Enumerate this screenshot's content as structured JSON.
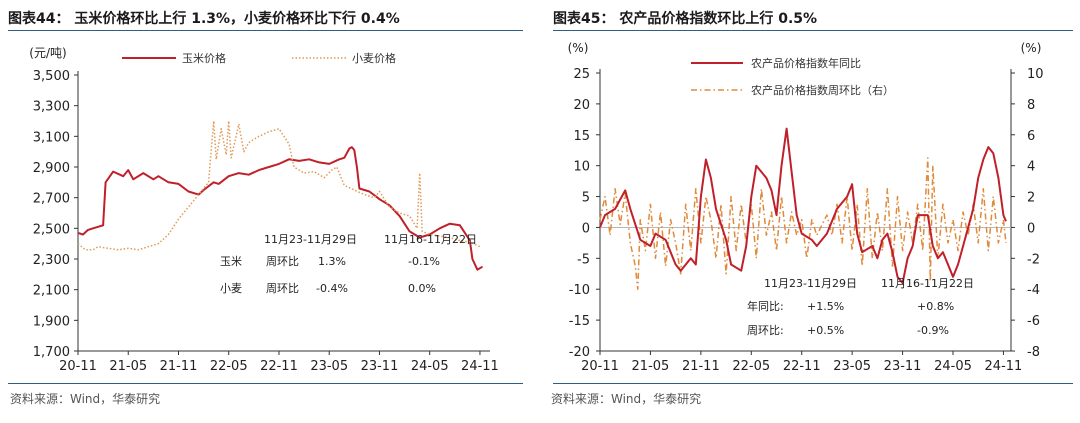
{
  "left": {
    "title": "图表44：  玉米价格环比上行 1.3%，小麦价格环比下行 0.4%",
    "source": "资料来源：Wind，华泰研究",
    "chart_data": {
      "type": "line",
      "ylabel": "(元/吨)",
      "ylim": [
        1700,
        3500
      ],
      "yticks": [
        "3,500",
        "3,300",
        "3,100",
        "2,900",
        "2,700",
        "2,500",
        "2,300",
        "2,100",
        "1,900",
        "1,700"
      ],
      "xlabels": [
        "20-11",
        "21-05",
        "21-11",
        "22-05",
        "22-11",
        "23-05",
        "23-11",
        "24-05",
        "24-11"
      ],
      "series": [
        {
          "name": "玉米价格",
          "color": "#c0202a",
          "style": "solid",
          "points": [
            [
              0,
              2470
            ],
            [
              0.1,
              2460
            ],
            [
              0.2,
              2490
            ],
            [
              0.3,
              2500
            ],
            [
              0.5,
              2520
            ],
            [
              0.55,
              2800
            ],
            [
              0.7,
              2870
            ],
            [
              0.9,
              2840
            ],
            [
              1.0,
              2880
            ],
            [
              1.1,
              2820
            ],
            [
              1.3,
              2860
            ],
            [
              1.5,
              2820
            ],
            [
              1.6,
              2840
            ],
            [
              1.8,
              2800
            ],
            [
              2.0,
              2790
            ],
            [
              2.2,
              2740
            ],
            [
              2.4,
              2720
            ],
            [
              2.5,
              2750
            ],
            [
              2.7,
              2800
            ],
            [
              2.8,
              2790
            ],
            [
              3.0,
              2840
            ],
            [
              3.2,
              2860
            ],
            [
              3.4,
              2850
            ],
            [
              3.6,
              2880
            ],
            [
              3.8,
              2900
            ],
            [
              4.0,
              2920
            ],
            [
              4.2,
              2950
            ],
            [
              4.4,
              2940
            ],
            [
              4.6,
              2950
            ],
            [
              4.8,
              2930
            ],
            [
              5.0,
              2920
            ],
            [
              5.2,
              2950
            ],
            [
              5.3,
              2960
            ],
            [
              5.4,
              3020
            ],
            [
              5.45,
              3030
            ],
            [
              5.5,
              3010
            ],
            [
              5.55,
              2900
            ],
            [
              5.6,
              2760
            ],
            [
              5.8,
              2740
            ],
            [
              6.0,
              2690
            ],
            [
              6.2,
              2650
            ],
            [
              6.4,
              2580
            ],
            [
              6.6,
              2480
            ],
            [
              6.8,
              2440
            ],
            [
              7.0,
              2460
            ],
            [
              7.2,
              2500
            ],
            [
              7.4,
              2530
            ],
            [
              7.6,
              2520
            ],
            [
              7.8,
              2420
            ],
            [
              7.85,
              2300
            ],
            [
              7.95,
              2230
            ],
            [
              8.05,
              2250
            ]
          ]
        },
        {
          "name": "小麦价格",
          "color": "#e09a55",
          "style": "dotted",
          "points": [
            [
              0,
              2400
            ],
            [
              0.15,
              2360
            ],
            [
              0.3,
              2360
            ],
            [
              0.4,
              2380
            ],
            [
              0.6,
              2370
            ],
            [
              0.8,
              2360
            ],
            [
              1.0,
              2370
            ],
            [
              1.2,
              2360
            ],
            [
              1.4,
              2380
            ],
            [
              1.6,
              2400
            ],
            [
              1.8,
              2460
            ],
            [
              2.0,
              2560
            ],
            [
              2.2,
              2640
            ],
            [
              2.4,
              2720
            ],
            [
              2.6,
              2800
            ],
            [
              2.65,
              3000
            ],
            [
              2.7,
              3200
            ],
            [
              2.75,
              2950
            ],
            [
              2.85,
              3150
            ],
            [
              2.95,
              2980
            ],
            [
              3.0,
              3200
            ],
            [
              3.05,
              2960
            ],
            [
              3.2,
              3180
            ],
            [
              3.3,
              3000
            ],
            [
              3.4,
              3060
            ],
            [
              3.6,
              3100
            ],
            [
              3.8,
              3130
            ],
            [
              4.0,
              3150
            ],
            [
              4.1,
              3100
            ],
            [
              4.2,
              3050
            ],
            [
              4.3,
              2900
            ],
            [
              4.5,
              2860
            ],
            [
              4.7,
              2870
            ],
            [
              4.9,
              2830
            ],
            [
              5.05,
              2880
            ],
            [
              5.15,
              2900
            ],
            [
              5.3,
              2780
            ],
            [
              5.5,
              2750
            ],
            [
              5.7,
              2720
            ],
            [
              5.9,
              2700
            ],
            [
              6.0,
              2740
            ],
            [
              6.2,
              2640
            ],
            [
              6.4,
              2600
            ],
            [
              6.6,
              2580
            ],
            [
              6.75,
              2500
            ],
            [
              6.8,
              2860
            ],
            [
              6.85,
              2480
            ],
            [
              7.0,
              2460
            ],
            [
              7.2,
              2450
            ],
            [
              7.4,
              2440
            ],
            [
              7.6,
              2420
            ],
            [
              7.8,
              2410
            ],
            [
              8.0,
              2380
            ]
          ]
        }
      ]
    },
    "table": {
      "header_a": "11月23-11月29日",
      "header_b": "11月16-11月22日",
      "rows": [
        {
          "name": "玉米",
          "metric": "周环比",
          "a": "1.3%",
          "b": "-0.1%"
        },
        {
          "name": "小麦",
          "metric": "周环比",
          "a": "-0.4%",
          "b": "0.0%"
        }
      ]
    }
  },
  "right": {
    "title": "图表45：  农产品价格指数环比上行 0.5%",
    "source": "资料来源：Wind，华泰研究",
    "chart_data": {
      "type": "line",
      "ylabel_left": "(%)",
      "ylabel_right": "(%)",
      "ylim_left": [
        -20,
        25
      ],
      "ylim_right": [
        -8,
        10
      ],
      "yticks_left": [
        "25",
        "20",
        "15",
        "10",
        "5",
        "0",
        "-5",
        "-10",
        "-15",
        "-20"
      ],
      "yticks_right": [
        "10",
        "8",
        "6",
        "4",
        "2",
        "0",
        "-2",
        "-4",
        "-6",
        "-8"
      ],
      "xlabels": [
        "20-11",
        "21-05",
        "21-11",
        "22-05",
        "22-11",
        "23-05",
        "23-11",
        "24-05",
        "24-11"
      ],
      "series": [
        {
          "name": "农产品价格指数年同比",
          "color": "#c0202a",
          "style": "solid",
          "axis": "left",
          "points": [
            [
              0,
              0
            ],
            [
              0.1,
              2
            ],
            [
              0.3,
              3
            ],
            [
              0.5,
              6
            ],
            [
              0.6,
              3
            ],
            [
              0.8,
              -2
            ],
            [
              1.0,
              -3
            ],
            [
              1.1,
              -1
            ],
            [
              1.3,
              -2
            ],
            [
              1.5,
              -6
            ],
            [
              1.6,
              -7
            ],
            [
              1.8,
              -5
            ],
            [
              1.9,
              -6
            ],
            [
              2.0,
              5
            ],
            [
              2.1,
              11
            ],
            [
              2.2,
              8
            ],
            [
              2.3,
              3
            ],
            [
              2.5,
              -2
            ],
            [
              2.6,
              -6
            ],
            [
              2.8,
              -7
            ],
            [
              2.9,
              -3
            ],
            [
              3.0,
              5
            ],
            [
              3.1,
              10
            ],
            [
              3.3,
              8
            ],
            [
              3.4,
              6
            ],
            [
              3.5,
              2
            ],
            [
              3.6,
              10
            ],
            [
              3.7,
              16
            ],
            [
              3.8,
              9
            ],
            [
              3.9,
              2
            ],
            [
              4.0,
              -1
            ],
            [
              4.2,
              -2
            ],
            [
              4.3,
              -3
            ],
            [
              4.5,
              -1
            ],
            [
              4.7,
              3
            ],
            [
              4.9,
              5
            ],
            [
              5.0,
              7
            ],
            [
              5.1,
              -1
            ],
            [
              5.2,
              -4
            ],
            [
              5.4,
              -3
            ],
            [
              5.5,
              -5
            ],
            [
              5.6,
              -2
            ],
            [
              5.7,
              -1
            ],
            [
              5.8,
              -4
            ],
            [
              5.9,
              -8
            ],
            [
              6.0,
              -9
            ],
            [
              6.1,
              -5
            ],
            [
              6.2,
              -3
            ],
            [
              6.3,
              2
            ],
            [
              6.5,
              2
            ],
            [
              6.6,
              -3
            ],
            [
              6.7,
              -5
            ],
            [
              6.8,
              -4
            ],
            [
              6.9,
              -6
            ],
            [
              7.0,
              -8
            ],
            [
              7.1,
              -6
            ],
            [
              7.2,
              -3
            ],
            [
              7.4,
              3
            ],
            [
              7.5,
              8
            ],
            [
              7.6,
              11
            ],
            [
              7.7,
              13
            ],
            [
              7.8,
              12
            ],
            [
              7.9,
              8
            ],
            [
              8.0,
              2
            ],
            [
              8.05,
              1
            ]
          ]
        },
        {
          "name": "农产品价格指数周环比（右）",
          "color": "#e08a3a",
          "style": "dashdot",
          "axis": "right",
          "points": [
            [
              0,
              0.5
            ],
            [
              0.1,
              2.0
            ],
            [
              0.2,
              -0.5
            ],
            [
              0.3,
              2.5
            ],
            [
              0.4,
              0.2
            ],
            [
              0.5,
              2.2
            ],
            [
              0.6,
              -1.0
            ],
            [
              0.7,
              -2.5
            ],
            [
              0.75,
              -4.0
            ],
            [
              0.8,
              0.5
            ],
            [
              0.9,
              -1.5
            ],
            [
              1.0,
              1.5
            ],
            [
              1.1,
              -2.0
            ],
            [
              1.2,
              1.0
            ],
            [
              1.3,
              -2.5
            ],
            [
              1.4,
              0.5
            ],
            [
              1.5,
              -1.0
            ],
            [
              1.6,
              -3.0
            ],
            [
              1.7,
              1.5
            ],
            [
              1.8,
              -1.5
            ],
            [
              1.9,
              2.5
            ],
            [
              2.0,
              -1.0
            ],
            [
              2.1,
              2.0
            ],
            [
              2.2,
              0.5
            ],
            [
              2.3,
              -2.0
            ],
            [
              2.4,
              1.5
            ],
            [
              2.5,
              -3.0
            ],
            [
              2.6,
              2.0
            ],
            [
              2.7,
              -1.5
            ],
            [
              2.8,
              1.5
            ],
            [
              2.9,
              -1.0
            ],
            [
              3.0,
              1.5
            ],
            [
              3.1,
              -2.0
            ],
            [
              3.2,
              2.5
            ],
            [
              3.3,
              -0.5
            ],
            [
              3.4,
              1.0
            ],
            [
              3.5,
              -1.5
            ],
            [
              3.6,
              2.0
            ],
            [
              3.7,
              -1.0
            ],
            [
              3.8,
              1.0
            ],
            [
              3.9,
              -0.5
            ],
            [
              4.0,
              0.5
            ],
            [
              4.1,
              -2.0
            ],
            [
              4.2,
              0.5
            ],
            [
              4.3,
              -0.5
            ],
            [
              4.5,
              0.8
            ],
            [
              4.6,
              -0.5
            ],
            [
              4.7,
              1.5
            ],
            [
              4.8,
              -1.0
            ],
            [
              4.9,
              2.0
            ],
            [
              5.0,
              -1.5
            ],
            [
              5.1,
              1.5
            ],
            [
              5.2,
              -2.5
            ],
            [
              5.3,
              2.5
            ],
            [
              5.4,
              -2.0
            ],
            [
              5.5,
              1.0
            ],
            [
              5.6,
              -1.5
            ],
            [
              5.7,
              2.5
            ],
            [
              5.8,
              -2.5
            ],
            [
              5.9,
              2.0
            ],
            [
              6.0,
              -1.5
            ],
            [
              6.1,
              1.0
            ],
            [
              6.2,
              -1.0
            ],
            [
              6.3,
              1.5
            ],
            [
              6.4,
              -1.5
            ],
            [
              6.5,
              4.5
            ],
            [
              6.55,
              -3.5
            ],
            [
              6.6,
              4.0
            ],
            [
              6.7,
              -2.0
            ],
            [
              6.8,
              1.5
            ],
            [
              6.9,
              -1.0
            ],
            [
              7.0,
              0.5
            ],
            [
              7.1,
              -1.5
            ],
            [
              7.2,
              1.0
            ],
            [
              7.3,
              -0.5
            ],
            [
              7.4,
              1.5
            ],
            [
              7.5,
              -1.0
            ],
            [
              7.6,
              2.5
            ],
            [
              7.7,
              -1.5
            ],
            [
              7.8,
              2.0
            ],
            [
              7.9,
              -1.0
            ],
            [
              8.0,
              0.5
            ],
            [
              8.05,
              -1.0
            ]
          ]
        }
      ]
    },
    "table": {
      "header_a": "11月23-11月29日",
      "header_b": "11月16-11月22日",
      "rows": [
        {
          "metric": "年同比:",
          "a": "+1.5%",
          "b": "+0.8%"
        },
        {
          "metric": "周环比:",
          "a": "+0.5%",
          "b": "-0.9%"
        }
      ]
    }
  }
}
